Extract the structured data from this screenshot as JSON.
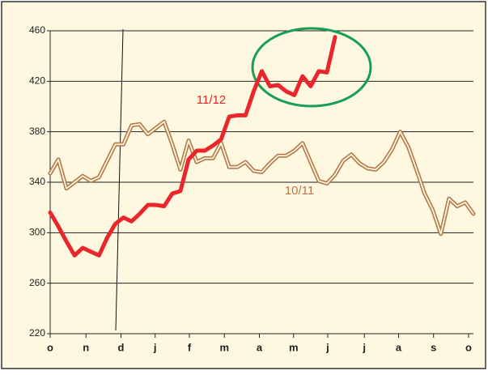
{
  "chart_data": {
    "type": "line",
    "x": [
      0,
      1,
      2,
      3,
      4,
      5,
      6,
      7,
      8,
      9,
      10,
      11,
      12,
      13,
      14,
      15,
      16,
      17,
      18,
      19,
      20,
      21,
      22,
      23,
      24,
      25,
      26,
      27,
      28,
      29,
      30,
      31,
      32,
      33,
      34,
      35,
      36,
      37,
      38,
      39,
      40,
      41,
      42,
      43,
      44,
      45,
      46,
      47,
      48,
      49,
      50,
      51,
      52
    ],
    "xlim": [
      0,
      52
    ],
    "xticks": [
      {
        "value": 0,
        "label": "o"
      },
      {
        "value": 4.4,
        "label": "n"
      },
      {
        "value": 8.7,
        "label": "d"
      },
      {
        "value": 12.9,
        "label": "j"
      },
      {
        "value": 17.1,
        "label": "f"
      },
      {
        "value": 21.4,
        "label": "m"
      },
      {
        "value": 25.7,
        "label": "a"
      },
      {
        "value": 29.9,
        "label": "m"
      },
      {
        "value": 34.1,
        "label": "j"
      },
      {
        "value": 38.6,
        "label": "j"
      },
      {
        "value": 42.8,
        "label": "a"
      },
      {
        "value": 47.1,
        "label": "s"
      },
      {
        "value": 51.4,
        "label": "o"
      }
    ],
    "ylim": [
      220,
      460
    ],
    "yticks": [
      220,
      260,
      300,
      340,
      380,
      420,
      460
    ],
    "grid": true,
    "series": [
      {
        "name": "10/11",
        "color": "#b5784a",
        "values": [
          347,
          358,
          335,
          340,
          345,
          341,
          344,
          357,
          370,
          370,
          385,
          386,
          378,
          383,
          388,
          370,
          350,
          373,
          356,
          359,
          359,
          371,
          352,
          352,
          356,
          349,
          348,
          355,
          361,
          361,
          365,
          371,
          356,
          341,
          339,
          346,
          357,
          362,
          355,
          351,
          350,
          356,
          366,
          380,
          368,
          350,
          331,
          318,
          299,
          327,
          321,
          324,
          315
        ]
      },
      {
        "name": "11/12",
        "color": "#e8262b",
        "values": [
          316,
          305,
          293,
          282,
          288,
          285,
          282,
          296,
          307,
          312,
          309,
          315,
          322,
          322,
          321,
          331,
          333,
          358,
          365,
          365,
          369,
          374,
          392,
          393,
          393,
          412,
          428,
          416,
          417,
          412,
          409,
          424,
          416,
          428,
          427,
          455,
          null,
          null,
          null,
          null,
          null,
          null,
          null,
          null,
          null,
          null,
          null,
          null,
          null,
          null,
          null,
          null,
          null
        ]
      }
    ]
  }
}
